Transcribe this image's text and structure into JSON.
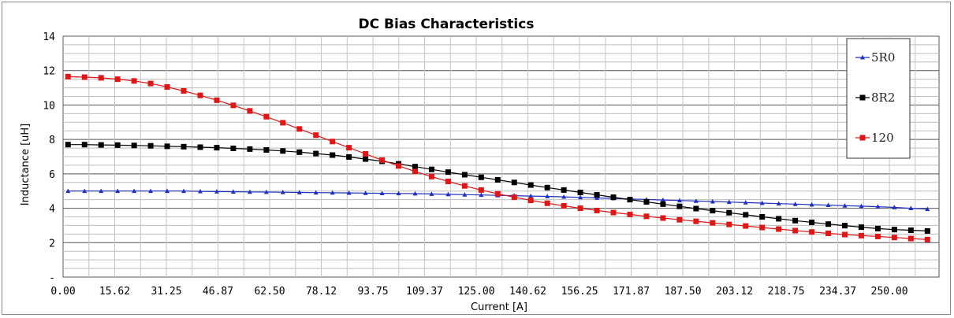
{
  "chart_data": {
    "type": "line",
    "title": "DC Bias Characteristics",
    "xlabel": "Current [A]",
    "ylabel": "Inductance [uH]",
    "xlim": [
      0,
      265
    ],
    "ylim": [
      0,
      14
    ],
    "x_tick_labels": [
      "0.00",
      "15.62",
      "31.25",
      "46.87",
      "62.50",
      "78.12",
      "93.75",
      "109.37",
      "125.00",
      "140.62",
      "156.25",
      "171.87",
      "187.50",
      "203.12",
      "218.75",
      "234.37",
      "250.00"
    ],
    "y_tick_labels": [
      "-",
      "2",
      "4",
      "6",
      "8",
      "10",
      "12",
      "14"
    ],
    "grid": true,
    "legend_position": "right",
    "x": [
      1.5,
      6.5,
      11.5,
      16.5,
      21.5,
      26.5,
      31.5,
      36.5,
      41.5,
      46.5,
      51.5,
      56.5,
      61.5,
      66.5,
      71.5,
      76.5,
      81.5,
      86.5,
      91.5,
      96.5,
      101.5,
      106.5,
      111.5,
      116.5,
      121.5,
      126.5,
      131.5,
      136.5,
      141.5,
      146.5,
      151.5,
      156.5,
      161.5,
      166.5,
      171.5,
      176.5,
      181.5,
      186.5,
      191.5,
      196.5,
      201.5,
      206.5,
      211.5,
      216.5,
      221.5,
      226.5,
      231.5,
      236.5,
      241.5,
      246.5,
      251.5,
      256.5,
      261.5
    ],
    "series": [
      {
        "name": "5R0",
        "color": "#1f2fbf",
        "marker": "triangle",
        "values": [
          5.0,
          5.0,
          5.0,
          5.0,
          5.0,
          5.0,
          5.0,
          5.0,
          4.98,
          4.97,
          4.96,
          4.95,
          4.94,
          4.93,
          4.92,
          4.91,
          4.9,
          4.89,
          4.88,
          4.87,
          4.86,
          4.85,
          4.83,
          4.81,
          4.79,
          4.77,
          4.75,
          4.73,
          4.71,
          4.69,
          4.66,
          4.63,
          4.6,
          4.57,
          4.54,
          4.51,
          4.48,
          4.45,
          4.42,
          4.39,
          4.36,
          4.33,
          4.3,
          4.27,
          4.24,
          4.21,
          4.18,
          4.15,
          4.12,
          4.09,
          4.05,
          4.0,
          3.95
        ]
      },
      {
        "name": "8R2",
        "color": "#000000",
        "marker": "square",
        "values": [
          7.7,
          7.7,
          7.68,
          7.67,
          7.65,
          7.63,
          7.6,
          7.58,
          7.55,
          7.52,
          7.48,
          7.44,
          7.39,
          7.33,
          7.26,
          7.18,
          7.09,
          6.98,
          6.86,
          6.73,
          6.58,
          6.42,
          6.26,
          6.1,
          5.95,
          5.8,
          5.65,
          5.5,
          5.35,
          5.2,
          5.06,
          4.92,
          4.78,
          4.64,
          4.5,
          4.37,
          4.24,
          4.11,
          3.98,
          3.86,
          3.74,
          3.62,
          3.5,
          3.39,
          3.28,
          3.18,
          3.08,
          2.99,
          2.9,
          2.82,
          2.76,
          2.72,
          2.68
        ]
      },
      {
        "name": "120",
        "color": "#e01515",
        "marker": "square",
        "values": [
          11.65,
          11.62,
          11.58,
          11.5,
          11.4,
          11.25,
          11.05,
          10.82,
          10.56,
          10.28,
          9.98,
          9.66,
          9.32,
          8.97,
          8.61,
          8.25,
          7.88,
          7.52,
          7.16,
          6.8,
          6.46,
          6.14,
          5.84,
          5.56,
          5.3,
          5.06,
          4.84,
          4.64,
          4.46,
          4.29,
          4.14,
          4.0,
          3.87,
          3.75,
          3.64,
          3.53,
          3.43,
          3.33,
          3.24,
          3.15,
          3.06,
          2.97,
          2.88,
          2.79,
          2.7,
          2.62,
          2.54,
          2.47,
          2.41,
          2.36,
          2.3,
          2.24,
          2.18
        ]
      }
    ]
  }
}
